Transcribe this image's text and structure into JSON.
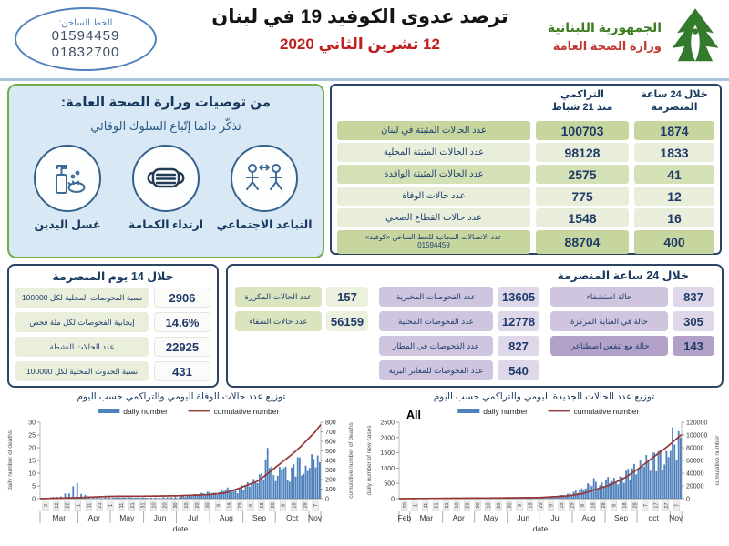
{
  "header": {
    "hotline_label": "الخط الساخن:",
    "hotline_number1": "01594459",
    "hotline_number2": "01832700",
    "title": "ترصد عدوى الكوفيد 19 في لبنان",
    "date": "12 تشرين الثاني 2020",
    "ministry_line1": "الجمهورية اللبنانية",
    "ministry_line2": "وزارة الصحة العامة"
  },
  "recommendations": {
    "title": "من توصيات وزارة الصحة العامة:",
    "subtitle": "تذكّر دائما إتّباع السلوك الوقائي",
    "items": [
      {
        "label": "التباعد الاجتماعي",
        "icon": "social-distancing-icon"
      },
      {
        "label": "ارتداء الكمامة",
        "icon": "face-mask-icon"
      },
      {
        "label": "غسل اليدين",
        "icon": "hand-washing-icon"
      }
    ]
  },
  "main_table": {
    "hdr_24h": "خلال 24 ساعة\nالمنصرمة",
    "hdr_cum": "التراكمي\nمنذ 21 شباط",
    "rows": [
      {
        "label": "عدد الحالات المثبتة في لبنان",
        "cumulative": "100703",
        "last24h": "1874"
      },
      {
        "label": "عدد الحالات المثبتة المحلية",
        "cumulative": "98128",
        "last24h": "1833"
      },
      {
        "label": "عدد الحالات المثبتة الوافدة",
        "cumulative": "2575",
        "last24h": "41"
      },
      {
        "label": "عدد حالات الوفاة",
        "cumulative": "775",
        "last24h": "12"
      },
      {
        "label": "عدد حالات القطاع الصحي",
        "cumulative": "1548",
        "last24h": "16"
      },
      {
        "label": "عدد الاتصالات المجانية للخط الساخن «كوفيد»\n01594459",
        "cumulative": "88704",
        "last24h": "400"
      }
    ]
  },
  "fortnight_box": {
    "title": "خلال 14 يوم المنصرمة",
    "rows": [
      {
        "label": "نسبة الفحوصات المحلية لكل 100000",
        "value": "2906"
      },
      {
        "label": "إيجابية الفحوصات لكل مئة فحص",
        "value": "14.6%"
      },
      {
        "label": "عدد الحالات النشطة",
        "value": "22925"
      },
      {
        "label": "نسبة الحدوث المحلية لكل 100000",
        "value": "431"
      }
    ]
  },
  "day_box": {
    "title": "خلال 24 ساعة المنصرمة",
    "green": [
      {
        "label": "عدد الحالات المكررة",
        "value": "157"
      },
      {
        "label": "عدد حالات الشفاء",
        "value": "56159"
      }
    ],
    "tests": [
      {
        "label": "عدد الفحوصات المخبرية",
        "value": "13605"
      },
      {
        "label": "عدد الفحوصات المحلية",
        "value": "12778"
      },
      {
        "label": "عدد الفحوصات في المطار",
        "value": "827"
      },
      {
        "label": "عدد الفحوصات للمعابر البرية",
        "value": "540"
      }
    ],
    "clinical": [
      {
        "label": "حالة استشفاء",
        "value": "837"
      },
      {
        "label": "حالة في العناية المركزة",
        "value": "305"
      },
      {
        "label": "حالة مع تنفس اصطناعي",
        "value": "143"
      }
    ]
  },
  "colors": {
    "bar": "#4f81bd",
    "line": "#943735",
    "navy": "#1f3a68",
    "accent_green": "#76ab45",
    "accent_red": "#bf1f1f"
  },
  "chart_data": [
    {
      "type": "bar+line",
      "title": "توزيع عدد حالات  الوفاة اليومي والتراكمي حسب اليوم",
      "legend": [
        "daily number",
        "cumulative number"
      ],
      "ylabel_left": "daily number of deaths",
      "ylabel_right": "cumulative number of deaths",
      "xlabel": "date",
      "months": [
        "Mar",
        "Apr",
        "May",
        "Jun",
        "Jul",
        "Aug",
        "Sep",
        "Oct",
        "Nov"
      ],
      "month_bounds": [
        0,
        0.135,
        0.25,
        0.369,
        0.485,
        0.604,
        0.723,
        0.838,
        0.958,
        1.0
      ],
      "day_ticks": [
        "2",
        "12",
        "22",
        "1",
        "11",
        "21",
        "1",
        "11",
        "21",
        "31",
        "10",
        "20",
        "30",
        "10",
        "20",
        "30",
        "9",
        "19",
        "29",
        "8",
        "18",
        "28",
        "8",
        "18",
        "28",
        "7"
      ],
      "ylim_left": [
        0,
        30
      ],
      "left_ticks": [
        0,
        5,
        10,
        15,
        20,
        25,
        30
      ],
      "ylim_right": [
        0,
        800
      ],
      "right_ticks": [
        0,
        100,
        200,
        300,
        400,
        500,
        600,
        700,
        800
      ],
      "daily_anchors": [
        [
          0,
          0
        ],
        [
          0.08,
          1
        ],
        [
          0.115,
          4
        ],
        [
          0.13,
          6.5
        ],
        [
          0.15,
          1.5
        ],
        [
          0.2,
          0.5
        ],
        [
          0.3,
          0.4
        ],
        [
          0.4,
          0.4
        ],
        [
          0.5,
          0.8
        ],
        [
          0.55,
          1.5
        ],
        [
          0.6,
          2.5
        ],
        [
          0.63,
          2
        ],
        [
          0.66,
          4
        ],
        [
          0.7,
          3
        ],
        [
          0.72,
          5
        ],
        [
          0.75,
          6
        ],
        [
          0.78,
          8
        ],
        [
          0.8,
          12
        ],
        [
          0.815,
          21
        ],
        [
          0.83,
          8
        ],
        [
          0.85,
          10
        ],
        [
          0.87,
          15
        ],
        [
          0.88,
          7
        ],
        [
          0.9,
          12
        ],
        [
          0.92,
          16
        ],
        [
          0.94,
          10
        ],
        [
          0.96,
          14
        ],
        [
          0.98,
          17
        ],
        [
          1,
          13
        ]
      ],
      "cumulative_anchors": [
        [
          0,
          0
        ],
        [
          0.135,
          11
        ],
        [
          0.25,
          24
        ],
        [
          0.37,
          26
        ],
        [
          0.485,
          30
        ],
        [
          0.6,
          42
        ],
        [
          0.66,
          60
        ],
        [
          0.72,
          120
        ],
        [
          0.78,
          190
        ],
        [
          0.84,
          330
        ],
        [
          0.9,
          470
        ],
        [
          0.93,
          550
        ],
        [
          0.96,
          640
        ],
        [
          0.98,
          700
        ],
        [
          1,
          775
        ]
      ],
      "bar_count": 140
    },
    {
      "type": "bar+line",
      "title": "توزيع عدد الحالات الجديدة اليومي والتراكمي حسب اليوم",
      "corner_label": "All",
      "legend": [
        "daily number",
        "cumulative number"
      ],
      "ylabel_left": "daily number of new cases",
      "ylabel_right": "cumulative number",
      "xlabel": "date",
      "months": [
        "Feb",
        "Mar",
        "Apr",
        "May",
        "Jun",
        "Jul",
        "Aug",
        "Sep",
        "oct",
        "Nov"
      ],
      "month_bounds": [
        0,
        0.038,
        0.154,
        0.267,
        0.383,
        0.496,
        0.613,
        0.729,
        0.842,
        0.959,
        1.0
      ],
      "day_ticks": [
        "20",
        "1",
        "11",
        "21",
        "31",
        "10",
        "20",
        "30",
        "10",
        "20",
        "30",
        "9",
        "19",
        "29",
        "9",
        "19",
        "29",
        "8",
        "18",
        "28",
        "8",
        "18",
        "28",
        "7",
        "17",
        "27",
        "7"
      ],
      "ylim_left": [
        0,
        2500
      ],
      "left_ticks": [
        0,
        500,
        1000,
        1500,
        2000,
        2500
      ],
      "ylim_right": [
        0,
        120000
      ],
      "right_ticks": [
        0,
        20000,
        40000,
        60000,
        80000,
        100000,
        120000
      ],
      "daily_anchors": [
        [
          0,
          2
        ],
        [
          0.1,
          5
        ],
        [
          0.2,
          8
        ],
        [
          0.3,
          5
        ],
        [
          0.4,
          8
        ],
        [
          0.45,
          15
        ],
        [
          0.5,
          25
        ],
        [
          0.55,
          60
        ],
        [
          0.6,
          150
        ],
        [
          0.63,
          250
        ],
        [
          0.65,
          300
        ],
        [
          0.67,
          450
        ],
        [
          0.69,
          600
        ],
        [
          0.71,
          400
        ],
        [
          0.73,
          600
        ],
        [
          0.75,
          650
        ],
        [
          0.77,
          550
        ],
        [
          0.79,
          700
        ],
        [
          0.81,
          900
        ],
        [
          0.83,
          1000
        ],
        [
          0.85,
          1050
        ],
        [
          0.87,
          1300
        ],
        [
          0.88,
          1200
        ],
        [
          0.9,
          1400
        ],
        [
          0.92,
          1500
        ],
        [
          0.94,
          1150
        ],
        [
          0.96,
          1800
        ],
        [
          0.97,
          2100
        ],
        [
          0.98,
          1600
        ],
        [
          0.99,
          2000
        ],
        [
          1,
          1870
        ]
      ],
      "cumulative_anchors": [
        [
          0,
          0
        ],
        [
          0.2,
          700
        ],
        [
          0.4,
          1300
        ],
        [
          0.5,
          1800
        ],
        [
          0.6,
          4500
        ],
        [
          0.65,
          8000
        ],
        [
          0.7,
          15000
        ],
        [
          0.75,
          22000
        ],
        [
          0.8,
          33000
        ],
        [
          0.85,
          48000
        ],
        [
          0.9,
          65000
        ],
        [
          0.95,
          82000
        ],
        [
          1,
          100703
        ]
      ],
      "bar_count": 140
    }
  ]
}
